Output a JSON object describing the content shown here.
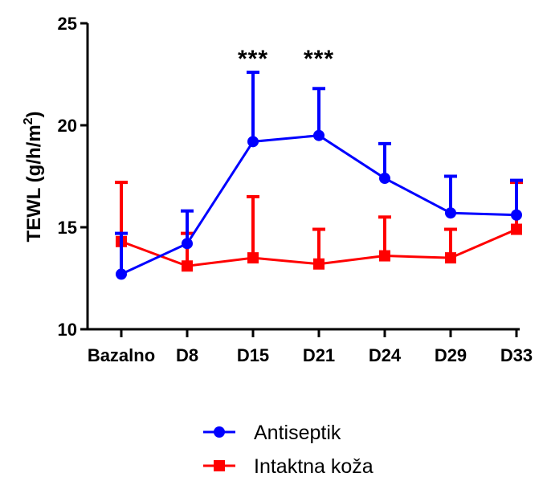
{
  "chart_data": {
    "type": "line",
    "title": "",
    "xlabel": "",
    "ylabel_main": "TEWL (g/h/m",
    "ylabel_sup": "2",
    "ylabel_close": ")",
    "categories": [
      "Bazalno",
      "D8",
      "D15",
      "D21",
      "D24",
      "D29",
      "D33"
    ],
    "ylim": [
      10,
      25
    ],
    "yticks": [
      10,
      15,
      20,
      25
    ],
    "grid": false,
    "legend_position": "bottom",
    "series": [
      {
        "name": "Antiseptik",
        "color": "#0000ff",
        "marker": "circle",
        "values": [
          12.7,
          14.2,
          19.2,
          19.5,
          17.4,
          15.7,
          15.6
        ],
        "error": [
          2.0,
          1.6,
          3.4,
          2.3,
          1.7,
          1.8,
          1.7
        ]
      },
      {
        "name": "Intaktna koža",
        "color": "#ff0000",
        "marker": "square",
        "values": [
          14.3,
          13.1,
          13.5,
          13.2,
          13.6,
          13.5,
          14.9
        ],
        "error": [
          2.9,
          1.6,
          3.0,
          1.7,
          1.9,
          1.4,
          2.3
        ]
      }
    ],
    "annotations": [
      {
        "category": "D15",
        "text": "***"
      },
      {
        "category": "D21",
        "text": "***"
      }
    ]
  }
}
